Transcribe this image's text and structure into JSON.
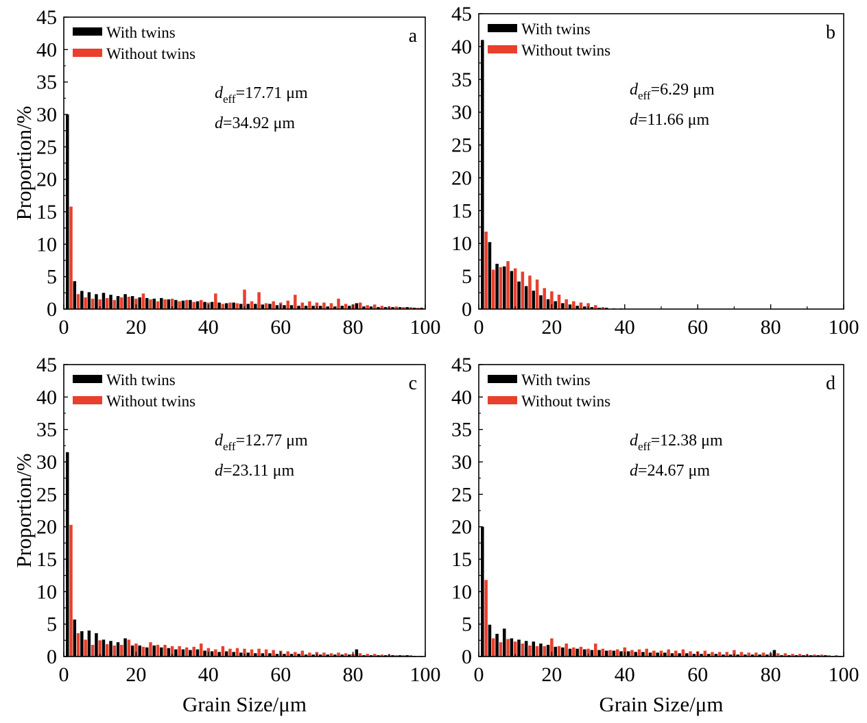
{
  "colors": {
    "with_twins": "#000000",
    "without_twins": "#e8402c"
  },
  "chart_data": [
    {
      "type": "bar",
      "panel": "a",
      "xlabel": "",
      "ylabel": "Proportion/%",
      "xlim": [
        0,
        100
      ],
      "ylim": [
        0,
        45
      ],
      "xticks": [
        "0",
        "20",
        "40",
        "60",
        "80",
        "100"
      ],
      "yticks": [
        "0",
        "5",
        "10",
        "15",
        "20",
        "25",
        "30",
        "35",
        "40",
        "45"
      ],
      "legend": [
        "With twins",
        "Without twins"
      ],
      "legend_position": "top-left",
      "annotations": {
        "deff_prefix": "d",
        "deff_sub": "eff",
        "deff_value": "=17.71 μm",
        "d_prefix": "d",
        "d_value": "=34.92 μm"
      },
      "series": [
        {
          "name": "With twins",
          "color": "#000000",
          "x": [
            1,
            3,
            5,
            7,
            9,
            11,
            13,
            15,
            17,
            19,
            21,
            23,
            25,
            27,
            29,
            31,
            33,
            35,
            37,
            39,
            41,
            43,
            45,
            47,
            49,
            51,
            53,
            55,
            57,
            59,
            61,
            63,
            65,
            67,
            69,
            71,
            73,
            75,
            77,
            79,
            81,
            83,
            85,
            87,
            89,
            91,
            93,
            95,
            97,
            99
          ],
          "values": [
            30,
            4.3,
            2.8,
            2.6,
            2.3,
            2.5,
            2.2,
            2,
            2.3,
            2,
            1.8,
            1.7,
            1.6,
            1.7,
            1.5,
            1.4,
            1.3,
            1.4,
            1.2,
            1.1,
            1.1,
            1,
            0.9,
            1,
            0.8,
            0.8,
            0.8,
            0.7,
            0.8,
            0.6,
            0.6,
            0.6,
            0.5,
            0.5,
            0.5,
            0.5,
            0.4,
            0.4,
            0.5,
            0.5,
            0.9,
            0.4,
            0.4,
            0.3,
            0.3,
            0.3,
            0.3,
            0.3,
            0.2,
            0.2
          ]
        },
        {
          "name": "Without twins",
          "color": "#e8402c",
          "x": [
            2,
            4,
            6,
            8,
            10,
            12,
            14,
            16,
            18,
            20,
            22,
            24,
            26,
            28,
            30,
            32,
            34,
            36,
            38,
            40,
            42,
            44,
            46,
            48,
            50,
            52,
            54,
            56,
            58,
            60,
            62,
            64,
            66,
            68,
            70,
            72,
            74,
            76,
            78,
            80,
            82,
            84,
            86,
            88,
            90,
            92,
            94,
            96,
            98
          ],
          "values": [
            15.8,
            2.3,
            1.8,
            1.6,
            1.5,
            1.7,
            1.4,
            1.8,
            1.9,
            1.6,
            2.4,
            1.5,
            1.2,
            1.5,
            1.6,
            1.2,
            1.4,
            1.1,
            1.4,
            1,
            2.4,
            0.8,
            1,
            0.9,
            3,
            1.2,
            2.6,
            0.9,
            1.2,
            1,
            1.3,
            2.2,
            1,
            1.2,
            1,
            1,
            0.9,
            1.6,
            0.8,
            0.7,
            1,
            0.6,
            0.7,
            0.5,
            0.4,
            0.4,
            0.3,
            0.3,
            0.2
          ]
        }
      ]
    },
    {
      "type": "bar",
      "panel": "b",
      "xlabel": "",
      "ylabel": "",
      "xlim": [
        0,
        100
      ],
      "ylim": [
        0,
        45
      ],
      "xticks": [
        "0",
        "20",
        "40",
        "60",
        "80",
        "100"
      ],
      "yticks": [
        "0",
        "5",
        "10",
        "15",
        "20",
        "25",
        "30",
        "35",
        "40",
        "45"
      ],
      "legend": [
        "With twins",
        "Without twins"
      ],
      "legend_position": "top-left",
      "annotations": {
        "deff_prefix": "d",
        "deff_sub": "eff",
        "deff_value": "=6.29 μm",
        "d_prefix": "d",
        "d_value": "=11.66 μm"
      },
      "series": [
        {
          "name": "With twins",
          "color": "#000000",
          "x": [
            1,
            3,
            5,
            7,
            9,
            11,
            13,
            15,
            17,
            19,
            21,
            23,
            25,
            27,
            29,
            31,
            33,
            35,
            37,
            39
          ],
          "values": [
            41,
            10.2,
            6.9,
            6.5,
            5.8,
            4.2,
            3.5,
            2.8,
            2.1,
            1.5,
            1.2,
            0.9,
            0.7,
            0.5,
            0.4,
            0.3,
            0.2,
            0.2,
            0.1,
            0.1
          ]
        },
        {
          "name": "Without twins",
          "color": "#e8402c",
          "x": [
            2,
            4,
            6,
            8,
            10,
            12,
            14,
            16,
            18,
            20,
            22,
            24,
            26,
            28,
            30,
            32,
            34
          ],
          "values": [
            11.8,
            6,
            6.4,
            7.3,
            6.2,
            5.7,
            5.1,
            4.5,
            3.2,
            2.7,
            2.2,
            1.5,
            1.2,
            1,
            0.9,
            0.6,
            0.3
          ]
        }
      ]
    },
    {
      "type": "bar",
      "panel": "c",
      "xlabel": "Grain Size/μm",
      "ylabel": "Proportion/%",
      "xlim": [
        0,
        100
      ],
      "ylim": [
        0,
        45
      ],
      "xticks": [
        "0",
        "20",
        "40",
        "60",
        "80",
        "100"
      ],
      "yticks": [
        "0",
        "5",
        "10",
        "15",
        "20",
        "25",
        "30",
        "35",
        "40",
        "45"
      ],
      "legend": [
        "With twins",
        "Without twins"
      ],
      "legend_position": "top-left",
      "annotations": {
        "deff_prefix": "d",
        "deff_sub": "eff",
        "deff_value": "=12.77 μm",
        "d_prefix": "d",
        "d_value": "=23.11 μm"
      },
      "series": [
        {
          "name": "With twins",
          "color": "#000000",
          "x": [
            1,
            3,
            5,
            7,
            9,
            11,
            13,
            15,
            17,
            19,
            21,
            23,
            25,
            27,
            29,
            31,
            33,
            35,
            37,
            39,
            41,
            43,
            45,
            47,
            49,
            51,
            53,
            55,
            57,
            59,
            61,
            63,
            65,
            67,
            69,
            71,
            73,
            75,
            77,
            79,
            81,
            83,
            85,
            87,
            89,
            91,
            93,
            95,
            97,
            99
          ],
          "values": [
            31.5,
            5.7,
            3.9,
            4,
            3.6,
            2.6,
            2.4,
            2.2,
            2.8,
            1.7,
            1.7,
            1.4,
            1.7,
            1.4,
            1.3,
            1.1,
            1.1,
            1,
            1.1,
            0.9,
            0.8,
            0.7,
            0.8,
            0.7,
            0.6,
            0.6,
            0.5,
            0.5,
            0.5,
            0.4,
            0.4,
            0.4,
            0.4,
            0.3,
            0.3,
            0.3,
            0.3,
            0.3,
            0.3,
            0.3,
            1.1,
            0.2,
            0.2,
            0.2,
            0.2,
            0.2,
            0.2,
            0.2,
            0.1,
            0.1
          ]
        },
        {
          "name": "Without twins",
          "color": "#e8402c",
          "x": [
            2,
            4,
            6,
            8,
            10,
            12,
            14,
            16,
            18,
            20,
            22,
            24,
            26,
            28,
            30,
            32,
            34,
            36,
            38,
            40,
            42,
            44,
            46,
            48,
            50,
            52,
            54,
            56,
            58,
            60,
            62,
            64,
            66,
            68,
            70,
            72,
            74,
            76,
            78,
            80,
            82,
            84,
            86,
            88,
            90,
            92,
            94,
            96,
            98
          ],
          "values": [
            20.3,
            3.6,
            2.6,
            1.8,
            2.5,
            1.9,
            1.7,
            1.8,
            2.6,
            2,
            1.5,
            2.2,
            1.8,
            1.8,
            1.6,
            1.6,
            1.4,
            1.5,
            2,
            1.3,
            1.1,
            1.6,
            1.2,
            1.3,
            1.2,
            1.1,
            1.2,
            1.1,
            1,
            0.9,
            0.8,
            0.7,
            0.9,
            0.6,
            0.7,
            0.6,
            0.5,
            0.6,
            0.5,
            0.4,
            0.5,
            0.4,
            0.4,
            0.3,
            0.3,
            0.2,
            0.2,
            0.2,
            0.1
          ]
        }
      ]
    },
    {
      "type": "bar",
      "panel": "d",
      "xlabel": "Grain Size/μm",
      "ylabel": "",
      "xlim": [
        0,
        100
      ],
      "ylim": [
        0,
        45
      ],
      "xticks": [
        "0",
        "20",
        "40",
        "60",
        "80",
        "100"
      ],
      "yticks": [
        "0",
        "5",
        "10",
        "15",
        "20",
        "25",
        "30",
        "35",
        "40",
        "45"
      ],
      "legend": [
        "With twins",
        "Without twins"
      ],
      "legend_position": "top-left",
      "annotations": {
        "deff_prefix": "d",
        "deff_sub": "eff",
        "deff_value": "=12.38 μm",
        "d_prefix": "d",
        "d_value": "=24.67 μm"
      },
      "series": [
        {
          "name": "With twins",
          "color": "#000000",
          "x": [
            1,
            3,
            5,
            7,
            9,
            11,
            13,
            15,
            17,
            19,
            21,
            23,
            25,
            27,
            29,
            31,
            33,
            35,
            37,
            39,
            41,
            43,
            45,
            47,
            49,
            51,
            53,
            55,
            57,
            59,
            61,
            63,
            65,
            67,
            69,
            71,
            73,
            75,
            77,
            79,
            81,
            83,
            85,
            87,
            89,
            91,
            93,
            95,
            97,
            99
          ],
          "values": [
            20,
            4.9,
            3.5,
            4.3,
            2.8,
            2.6,
            2.4,
            2.3,
            2,
            1.8,
            1.5,
            1.4,
            1.2,
            1.2,
            1.1,
            1,
            1,
            0.9,
            0.9,
            0.8,
            0.8,
            0.7,
            0.7,
            0.6,
            0.6,
            0.6,
            0.5,
            0.5,
            0.5,
            0.4,
            0.4,
            0.4,
            0.4,
            0.3,
            0.3,
            0.3,
            0.3,
            0.3,
            0.3,
            0.3,
            1,
            0.2,
            0.2,
            0.2,
            0.2,
            0.2,
            0.2,
            0.2,
            0.1,
            0.1
          ]
        },
        {
          "name": "Without twins",
          "color": "#e8402c",
          "x": [
            2,
            4,
            6,
            8,
            10,
            12,
            14,
            16,
            18,
            20,
            22,
            24,
            26,
            28,
            30,
            32,
            34,
            36,
            38,
            40,
            42,
            44,
            46,
            48,
            50,
            52,
            54,
            56,
            58,
            60,
            62,
            64,
            66,
            68,
            70,
            72,
            74,
            76,
            78,
            80,
            82,
            84,
            86,
            88,
            90,
            92,
            94,
            96,
            98
          ],
          "values": [
            11.8,
            2.8,
            2.2,
            2.7,
            2.3,
            2,
            1.7,
            1.6,
            1.6,
            2.8,
            1.6,
            2,
            1.4,
            1.5,
            1.2,
            2,
            1.2,
            1,
            1.1,
            1.4,
            1,
            1.1,
            1.2,
            0.9,
            0.9,
            1.1,
            0.9,
            1.1,
            0.8,
            0.8,
            0.9,
            0.7,
            0.7,
            0.7,
            1,
            0.7,
            0.6,
            0.6,
            0.6,
            0.5,
            0.5,
            0.5,
            0.4,
            0.4,
            0.3,
            0.3,
            0.3,
            0.2,
            0.2
          ]
        }
      ]
    }
  ]
}
